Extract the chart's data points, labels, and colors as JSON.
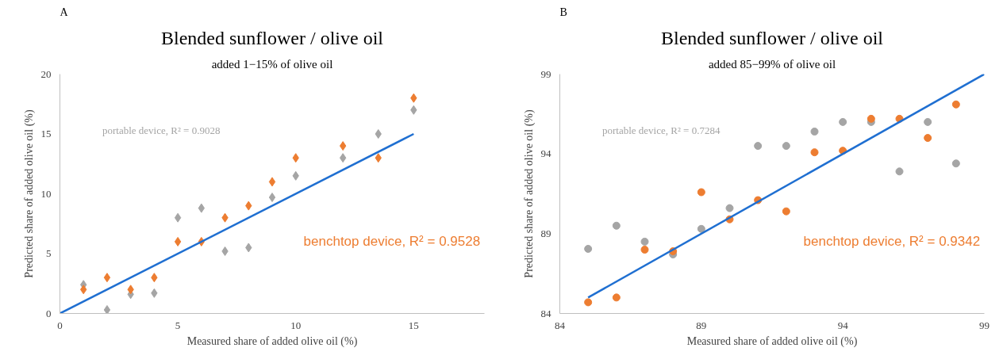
{
  "chart_data": [
    {
      "type": "scatter",
      "title": "Blended sunflower / olive oil",
      "subtitle": "added 1−15% of olive oil",
      "xlabel": "Measured share of added olive oil (%)",
      "ylabel": "Predicted share of added olive oil (%)",
      "annotations": [
        "A"
      ],
      "grid": false,
      "xlim": [
        0,
        18
      ],
      "xticks": [
        0,
        5,
        10,
        15
      ],
      "ylim": [
        0,
        20
      ],
      "yticks": [
        0,
        5,
        10,
        15,
        20
      ],
      "series": [
        {
          "name": "portable device, R² = 0.9028",
          "color": "#a5a5a5",
          "marker": "diamond",
          "x": [
            1,
            2,
            3,
            4,
            5,
            6,
            7,
            8,
            9,
            10,
            12,
            13.5,
            15
          ],
          "values": [
            2.4,
            0.3,
            1.6,
            1.7,
            8.0,
            8.8,
            5.2,
            5.5,
            9.7,
            11.5,
            13,
            15,
            17
          ]
        },
        {
          "name": "benchtop device, R² = 0.9528",
          "color": "#ed7d31",
          "marker": "diamond",
          "x": [
            1,
            2,
            3,
            4,
            5,
            6,
            7,
            8,
            9,
            10,
            12,
            13.5,
            15
          ],
          "values": [
            2,
            3,
            2,
            3,
            6,
            6,
            8,
            9,
            11,
            13,
            14,
            13,
            18
          ]
        },
        {
          "type": "line",
          "color": "#1f6fd1",
          "x": [
            0,
            15
          ],
          "values": [
            0,
            15
          ]
        }
      ]
    },
    {
      "type": "scatter",
      "title": "Blended sunflower / olive oil",
      "subtitle": "added 85−99% of olive oil",
      "xlabel": "Measured share of added olive oil (%)",
      "ylabel": "Predicted share of added olive oil (%)",
      "annotations": [
        "B"
      ],
      "grid": false,
      "xlim": [
        84,
        99
      ],
      "xticks": [
        84,
        89,
        94,
        99
      ],
      "ylim": [
        84,
        99
      ],
      "yticks": [
        84,
        89,
        94,
        99
      ],
      "series": [
        {
          "name": "portable device, R² = 0.7284",
          "color": "#a5a5a5",
          "marker": "circle",
          "x": [
            85,
            86,
            87,
            88,
            89,
            90,
            91,
            92,
            93,
            94,
            95,
            96,
            97,
            98
          ],
          "values": [
            88.05,
            89.5,
            88.5,
            87.7,
            89.3,
            90.6,
            94.5,
            94.5,
            95.4,
            96.0,
            96.0,
            92.9,
            96.0,
            93.4
          ]
        },
        {
          "name": "benchtop device, R² = 0.9342",
          "color": "#ed7d31",
          "marker": "circle",
          "x": [
            85,
            86,
            87,
            88,
            89,
            90,
            91,
            92,
            93,
            94,
            95,
            96,
            97,
            98
          ],
          "values": [
            84.7,
            85.0,
            88.0,
            87.9,
            91.6,
            89.9,
            91.1,
            90.4,
            94.1,
            94.2,
            96.2,
            96.2,
            95.0,
            97.1
          ]
        },
        {
          "type": "line",
          "color": "#1f6fd1",
          "x": [
            85,
            99
          ],
          "values": [
            85,
            99
          ]
        }
      ]
    }
  ]
}
